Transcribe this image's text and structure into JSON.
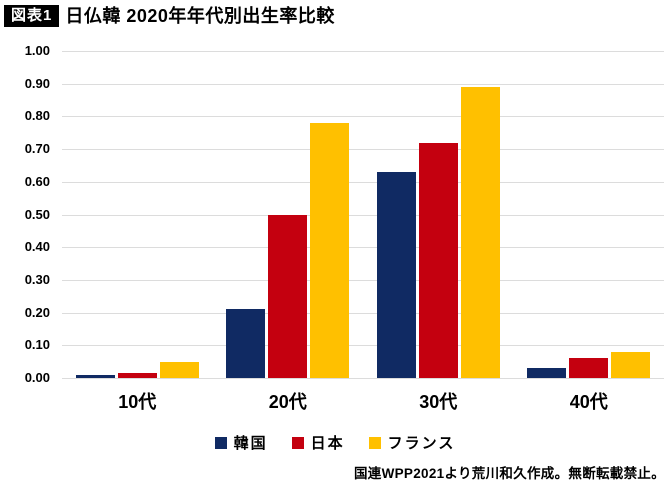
{
  "title": {
    "badge": "図表1",
    "text": "日仏韓 2020年年代別出生率比較"
  },
  "footer": {
    "source": "国連WPP2021より荒川和久作成。無断転載禁止。"
  },
  "colors": {
    "korea": "#102A63",
    "japan": "#C4000F",
    "france": "#FFC000",
    "gridline": "#DCDCDC",
    "badge_bg": "#000000",
    "badge_text": "#FFFFFF"
  },
  "chart_data": {
    "type": "bar",
    "title": "日仏韓 2020年年代別出生率比較",
    "categories": [
      "10代",
      "20代",
      "30代",
      "40代"
    ],
    "series": [
      {
        "name": "韓国",
        "color_key": "korea",
        "values": [
          0.01,
          0.21,
          0.63,
          0.03
        ]
      },
      {
        "name": "日本",
        "color_key": "japan",
        "values": [
          0.015,
          0.5,
          0.72,
          0.06
        ]
      },
      {
        "name": "フランス",
        "color_key": "france",
        "values": [
          0.05,
          0.78,
          0.89,
          0.08
        ]
      }
    ],
    "xlabel": "",
    "ylabel": "",
    "ylim": [
      0,
      1.0
    ],
    "ytick_step": 0.1,
    "ytick_labels": [
      "1.00",
      "0.90",
      "0.80",
      "0.70",
      "0.60",
      "0.50",
      "0.40",
      "0.30",
      "0.20",
      "0.10",
      "0.00"
    ],
    "grid": true,
    "legend_position": "bottom"
  }
}
